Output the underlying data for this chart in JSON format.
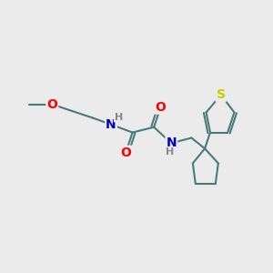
{
  "bg_color": "#ebebeb",
  "bond_color": "#4a7a7a",
  "bond_width": 1.5,
  "atom_colors": {
    "O": "#ff0000",
    "N": "#0000cc",
    "S": "#cccc00",
    "H": "#888888"
  },
  "font_size_atom": 10,
  "font_size_H": 8,
  "xlim": [
    0,
    10
  ],
  "ylim": [
    0,
    10
  ]
}
